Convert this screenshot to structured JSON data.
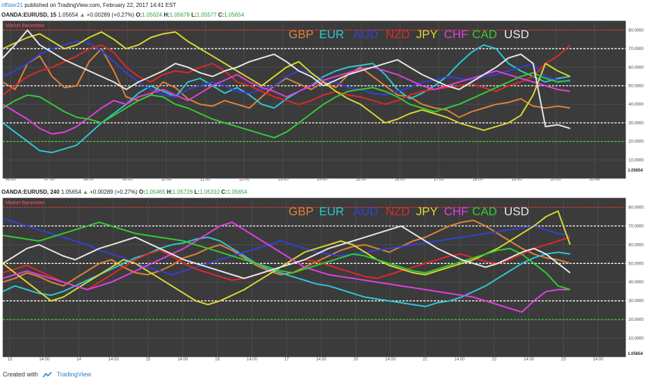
{
  "header": {
    "publisher": "riffster21",
    "published_text": "published on TradingView.com, February 22, 2017 14:41 EST"
  },
  "panels": [
    {
      "symbol": "OANDA:EURUSD, 15",
      "last": "1.05654",
      "change": "+0.00289 (+0.27%)",
      "open": "1.05624",
      "high": "1.05678",
      "low": "1.05577",
      "close": "1.05654",
      "indicator": "Market Barometer",
      "price_tag": "1.05654"
    },
    {
      "symbol": "OANDA:EURUSD, 240",
      "last": "1.05654",
      "change": "+0.00289 (+0.27%)",
      "open": "1.05465",
      "high": "1.05726",
      "low": "1.05310",
      "close": "1.05654",
      "indicator": "Market Barometer",
      "price_tag": "1.05654"
    }
  ],
  "labels": {
    "o": "O:",
    "h": "H:",
    "l": "L:",
    "c": "C:"
  },
  "footer": {
    "created_with": "Created with",
    "brand": "TradingView"
  },
  "colors": {
    "GBP": "#e0823a",
    "EUR": "#2ec8d4",
    "AUD": "#3340d8",
    "NZD": "#e02828",
    "JPY": "#d9d932",
    "CHF": "#e040e0",
    "CAD": "#33cc33",
    "USD": "#e8e8e8"
  },
  "chart_data": [
    {
      "type": "line",
      "title": "Market Barometer",
      "ylim": [
        0,
        85
      ],
      "yticks": [
        "80.0000",
        "70.0000",
        "60.0000",
        "50.0000",
        "40.0000",
        "30.0000",
        "20.0000",
        "10.0000"
      ],
      "reference_lines": [
        80,
        70,
        50,
        30,
        20
      ],
      "xticks": [
        "06:00",
        "07:00",
        "08:00",
        "09:00",
        "10:00",
        "11:00",
        "12:00",
        "13:00",
        "14:00",
        "15:00",
        "16:00",
        "17:00",
        "18:00",
        "19:00",
        "20:00",
        "20:45"
      ],
      "grid": true,
      "legend": "top-center",
      "series": [
        {
          "name": "GBP",
          "values": [
            52,
            48,
            62,
            66,
            55,
            49,
            50,
            63,
            70,
            58,
            44,
            42,
            45,
            52,
            49,
            43,
            40,
            39,
            42,
            40,
            38,
            44,
            50,
            54,
            51,
            48,
            52,
            49,
            56,
            60,
            55,
            50,
            45,
            44,
            40,
            38,
            37,
            33,
            36,
            38,
            40,
            41,
            43,
            39,
            38,
            39,
            38
          ]
        },
        {
          "name": "EUR",
          "values": [
            30,
            25,
            20,
            15,
            14,
            16,
            18,
            24,
            30,
            35,
            40,
            46,
            50,
            47,
            44,
            52,
            54,
            50,
            46,
            49,
            45,
            40,
            38,
            43,
            47,
            50,
            55,
            58,
            60,
            61,
            62,
            56,
            48,
            43,
            46,
            50,
            55,
            62,
            68,
            72,
            70,
            62,
            58,
            55,
            52,
            54,
            55
          ]
        },
        {
          "name": "AUD",
          "values": [
            55,
            58,
            62,
            67,
            70,
            72,
            74,
            73,
            69,
            63,
            57,
            52,
            48,
            45,
            44,
            48,
            50,
            52,
            50,
            47,
            46,
            48,
            50,
            55,
            58,
            57,
            53,
            52,
            49,
            48,
            46,
            45,
            47,
            49,
            52,
            53,
            55,
            54,
            53,
            55,
            56,
            58,
            60,
            62,
            55,
            53,
            52
          ]
        },
        {
          "name": "NZD",
          "values": [
            45,
            50,
            55,
            58,
            60,
            63,
            66,
            70,
            72,
            68,
            60,
            55,
            52,
            56,
            58,
            57,
            60,
            62,
            58,
            52,
            50,
            47,
            44,
            42,
            40,
            42,
            45,
            47,
            45,
            44,
            42,
            40,
            42,
            45,
            47,
            48,
            49,
            50,
            51,
            49,
            47,
            50,
            52,
            55,
            62,
            66,
            72
          ]
        },
        {
          "name": "JPY",
          "values": [
            70,
            73,
            76,
            78,
            74,
            70,
            72,
            76,
            79,
            75,
            70,
            72,
            76,
            78,
            79,
            74,
            70,
            66,
            62,
            58,
            54,
            50,
            55,
            60,
            63,
            57,
            52,
            47,
            43,
            40,
            35,
            30,
            32,
            35,
            37,
            35,
            33,
            30,
            28,
            26,
            28,
            30,
            34,
            45,
            62,
            58,
            55
          ]
        },
        {
          "name": "CHF",
          "values": [
            40,
            36,
            32,
            27,
            24,
            25,
            28,
            33,
            38,
            42,
            40,
            44,
            46,
            48,
            45,
            42,
            46,
            50,
            53,
            56,
            52,
            49,
            47,
            44,
            47,
            50,
            53,
            55,
            57,
            59,
            60,
            58,
            56,
            53,
            50,
            48,
            50,
            52,
            54,
            56,
            58,
            56,
            54,
            52,
            50,
            48,
            47
          ]
        },
        {
          "name": "CAD",
          "values": [
            38,
            42,
            45,
            44,
            40,
            36,
            33,
            32,
            30,
            34,
            38,
            42,
            45,
            44,
            40,
            38,
            35,
            32,
            30,
            28,
            26,
            24,
            22,
            25,
            30,
            35,
            40,
            44,
            47,
            48,
            49,
            47,
            44,
            40,
            38,
            36,
            38,
            40,
            43,
            46,
            49,
            52,
            55,
            57,
            54,
            52,
            53
          ]
        },
        {
          "name": "USD",
          "values": [
            65,
            72,
            80,
            72,
            68,
            64,
            61,
            58,
            55,
            52,
            48,
            52,
            55,
            58,
            62,
            60,
            57,
            55,
            58,
            60,
            63,
            65,
            67,
            63,
            58,
            55,
            50,
            53,
            56,
            58,
            60,
            62,
            64,
            60,
            56,
            53,
            50,
            48,
            52,
            56,
            60,
            65,
            67,
            62,
            28,
            29,
            27
          ]
        }
      ]
    },
    {
      "type": "line",
      "title": "Market Barometer",
      "ylim": [
        0,
        85
      ],
      "yticks": [
        "80.0000",
        "70.0000",
        "60.0000",
        "50.0000",
        "40.0000",
        "30.0000",
        "20.0000",
        "10.0000"
      ],
      "reference_lines": [
        80,
        70,
        50,
        30,
        20
      ],
      "xticks": [
        "13",
        "14:00",
        "14",
        "14:00",
        "15",
        "14:00",
        "16",
        "14:00",
        "17",
        "14:00",
        "20",
        "14:00",
        "21",
        "14:00",
        "22",
        "14:00",
        "23",
        "14:00"
      ],
      "grid": true,
      "legend": "top-center",
      "series": [
        {
          "name": "GBP",
          "values": [
            40,
            42,
            45,
            43,
            40,
            38,
            42,
            46,
            50,
            52,
            48,
            45,
            44,
            46,
            49,
            53,
            55,
            58,
            60,
            57,
            53,
            49,
            46,
            44,
            45,
            48,
            51,
            54,
            57,
            59,
            60,
            58,
            56,
            59,
            62,
            64,
            67,
            70,
            72,
            73,
            70,
            66,
            62,
            58,
            55,
            53,
            52,
            50
          ]
        },
        {
          "name": "EUR",
          "values": [
            35,
            38,
            36,
            34,
            33,
            35,
            38,
            41,
            44,
            47,
            50,
            53,
            55,
            58,
            60,
            61,
            63,
            64,
            62,
            58,
            54,
            50,
            47,
            45,
            43,
            41,
            39,
            38,
            36,
            34,
            32,
            31,
            30,
            29,
            28,
            27,
            29,
            30,
            32,
            35,
            38,
            42,
            46,
            50,
            53,
            55,
            56,
            55
          ]
        },
        {
          "name": "AUD",
          "values": [
            74,
            72,
            70,
            68,
            66,
            64,
            62,
            60,
            57,
            55,
            53,
            50,
            48,
            46,
            44,
            46,
            48,
            50,
            52,
            54,
            56,
            58,
            60,
            62,
            60,
            58,
            56,
            55,
            54,
            55,
            56,
            57,
            58,
            59,
            60,
            61,
            62,
            63,
            64,
            65,
            66,
            67,
            68,
            69,
            70,
            68,
            66,
            65
          ]
        },
        {
          "name": "NZD",
          "values": [
            45,
            47,
            49,
            46,
            43,
            40,
            38,
            36,
            40,
            44,
            48,
            52,
            55,
            57,
            54,
            50,
            47,
            45,
            43,
            41,
            42,
            44,
            46,
            48,
            50,
            52,
            51,
            49,
            47,
            45,
            43,
            42,
            44,
            46,
            48,
            50,
            52,
            54,
            55,
            53,
            51,
            50,
            52,
            55,
            58,
            60,
            62,
            64
          ]
        },
        {
          "name": "JPY",
          "values": [
            50,
            45,
            40,
            35,
            30,
            32,
            36,
            40,
            44,
            48,
            52,
            50,
            46,
            42,
            38,
            34,
            30,
            28,
            30,
            33,
            36,
            40,
            44,
            48,
            52,
            56,
            58,
            60,
            62,
            60,
            56,
            52,
            49,
            47,
            45,
            44,
            46,
            48,
            50,
            52,
            55,
            58,
            62,
            66,
            70,
            75,
            78,
            60
          ]
        },
        {
          "name": "CHF",
          "values": [
            42,
            44,
            46,
            44,
            42,
            40,
            38,
            36,
            38,
            40,
            43,
            46,
            49,
            52,
            55,
            58,
            62,
            66,
            70,
            72,
            68,
            64,
            60,
            56,
            52,
            48,
            46,
            44,
            43,
            42,
            41,
            40,
            39,
            38,
            37,
            36,
            35,
            34,
            33,
            32,
            30,
            28,
            26,
            24,
            30,
            35,
            36,
            36
          ]
        },
        {
          "name": "CAD",
          "values": [
            65,
            64,
            63,
            62,
            64,
            66,
            68,
            70,
            72,
            70,
            68,
            66,
            65,
            64,
            63,
            62,
            60,
            58,
            56,
            54,
            52,
            50,
            48,
            46,
            45,
            47,
            49,
            51,
            53,
            55,
            54,
            52,
            50,
            48,
            46,
            45,
            47,
            49,
            51,
            53,
            55,
            57,
            58,
            55,
            50,
            45,
            38,
            36
          ]
        },
        {
          "name": "USD",
          "values": [
            50,
            54,
            58,
            60,
            57,
            54,
            52,
            55,
            58,
            60,
            62,
            64,
            61,
            58,
            55,
            52,
            50,
            48,
            46,
            44,
            42,
            44,
            46,
            48,
            50,
            52,
            55,
            58,
            60,
            62,
            64,
            66,
            68,
            70,
            66,
            62,
            58,
            55,
            52,
            50,
            48,
            50,
            53,
            56,
            58,
            55,
            50,
            45
          ]
        }
      ]
    }
  ]
}
